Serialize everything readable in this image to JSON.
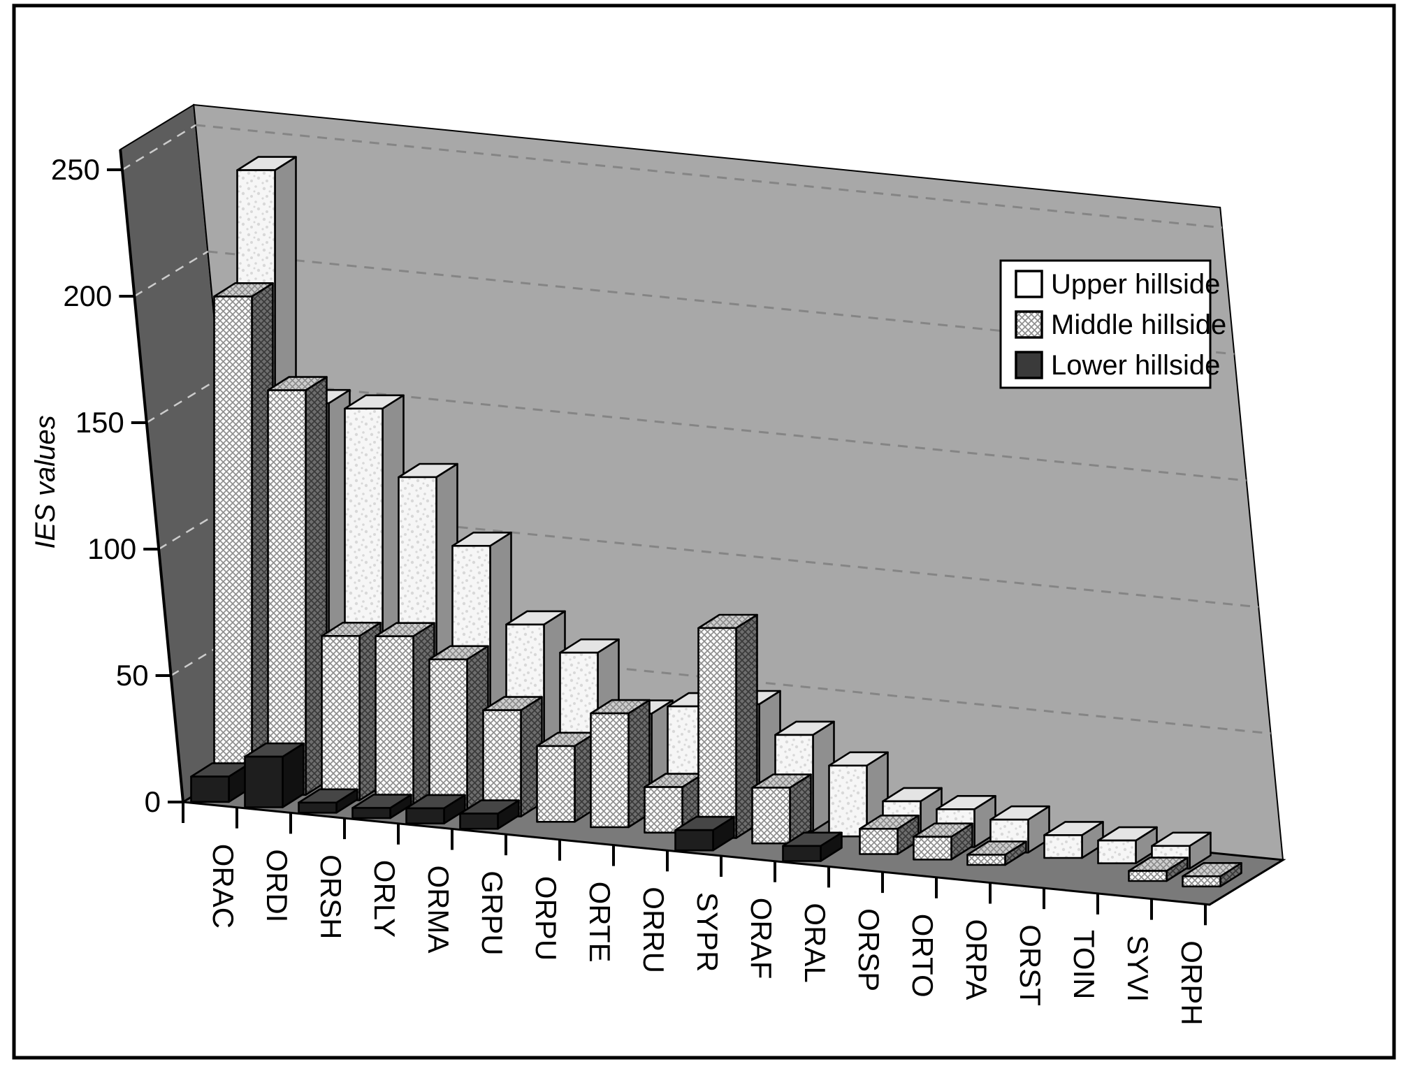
{
  "figure": {
    "background": "#ffffff",
    "border_color": "#000000"
  },
  "chart_data": {
    "type": "bar",
    "projection": "3d-oblique",
    "title": "",
    "xlabel": "",
    "ylabel": "IES values",
    "ylim": [
      0,
      250
    ],
    "yticks": [
      0,
      50,
      100,
      150,
      200,
      250
    ],
    "grid": "dashed-horizontal",
    "legend_position": "upper-right",
    "categories": [
      "ORAC",
      "ORDI",
      "ORSH",
      "ORLY",
      "ORMA",
      "GRPU",
      "ORPU",
      "ORTE",
      "ORRU",
      "SYPR",
      "ORAF",
      "ORAL",
      "ORSP",
      "ORTO",
      "ORPA",
      "ORST",
      "TOIN",
      "SYVI",
      "ORPH"
    ],
    "series": [
      {
        "name": "Upper hillside",
        "depth_row": "back",
        "style": "white-speckled",
        "values": [
          240,
          150,
          150,
          125,
          100,
          71,
          62,
          40,
          45,
          48,
          38,
          28,
          16,
          15,
          13,
          9,
          9,
          9,
          0
        ]
      },
      {
        "name": "Middle hillside",
        "depth_row": "middle",
        "style": "crosshatched",
        "values": [
          195,
          160,
          65,
          67,
          60,
          42,
          30,
          45,
          18,
          83,
          22,
          0,
          10,
          9,
          4,
          0,
          0,
          4,
          4
        ]
      },
      {
        "name": "Lower hillside",
        "depth_row": "front",
        "style": "dark",
        "values": [
          10,
          20,
          4,
          4,
          6,
          6,
          0,
          0,
          0,
          8,
          0,
          6,
          0,
          0,
          0,
          0,
          0,
          0,
          0
        ]
      }
    ]
  },
  "colors": {
    "back_wall": "#a8a8a8",
    "left_wall": "#5d5d5d",
    "floor": "#7a7a7a",
    "grid_on_light_wall": "#858585",
    "grid_on_dark_wall": "#cccccc",
    "outline": "#000000",
    "axis_text": "#000000",
    "upper_front": "#f6f6f6",
    "upper_speckle": "#d8d8d8",
    "upper_side": "#8f8f8f",
    "upper_top": "#e4e4e4",
    "middle_front_bg": "#ffffff",
    "middle_front_line": "#8f8f8f",
    "middle_side_bg": "#6e6e6e",
    "middle_side_line": "#3a3a3a",
    "middle_top_bg": "#cfcfcf",
    "middle_top_line": "#8a8a8a",
    "lower_front": "#1e1e1e",
    "lower_side": "#111111",
    "lower_top": "#464646",
    "legend_bg": "#ffffff",
    "legend_lower_swatch": "#3a3a3a"
  }
}
